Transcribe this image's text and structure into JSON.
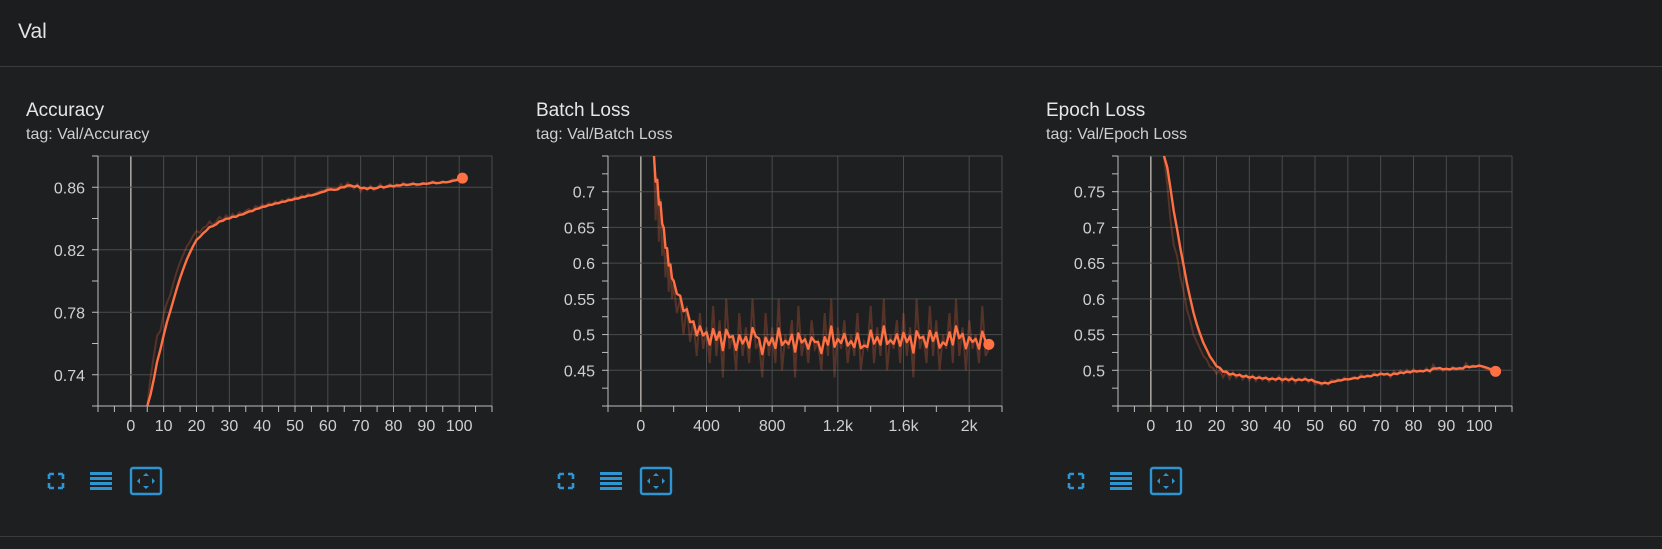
{
  "section": {
    "title": "Val"
  },
  "colors": {
    "series": "#ff7043",
    "grid": "#4a4b4d",
    "axis": "#bdbdbd",
    "zero": "#b0aca4",
    "button": "#2e95d3"
  },
  "cards": [
    {
      "title": "Accuracy",
      "tag": "tag: Val/Accuracy",
      "toolbar": [
        "fullscreen-icon",
        "list-icon",
        "fit-domain-icon"
      ]
    },
    {
      "title": "Batch Loss",
      "tag": "tag: Val/Batch Loss",
      "toolbar": [
        "fullscreen-icon",
        "list-icon",
        "fit-domain-icon"
      ]
    },
    {
      "title": "Epoch Loss",
      "tag": "tag: Val/Epoch Loss",
      "toolbar": [
        "fullscreen-icon",
        "list-icon",
        "fit-domain-icon"
      ]
    }
  ],
  "chart_data": [
    {
      "type": "line",
      "title": "Accuracy",
      "xlim": [
        -10,
        110
      ],
      "ylim": [
        0.72,
        0.88
      ],
      "xticks": [
        0,
        10,
        20,
        30,
        40,
        50,
        60,
        70,
        80,
        90,
        100
      ],
      "xtick_labels": [
        "0",
        "10",
        "20",
        "30",
        "40",
        "50",
        "60",
        "70",
        "80",
        "90",
        "100"
      ],
      "yticks": [
        0.74,
        0.78,
        0.82,
        0.86
      ],
      "ytick_labels": [
        "0.74",
        "0.78",
        "0.82",
        "0.86"
      ],
      "series": [
        {
          "x": [
            5,
            6,
            7,
            8,
            9,
            10,
            11,
            12,
            13,
            14,
            15,
            16,
            17,
            18,
            19,
            20,
            21,
            22,
            23,
            24,
            25,
            26,
            27,
            28,
            29,
            30,
            31,
            32,
            33,
            34,
            35,
            36,
            37,
            38,
            39,
            40,
            41,
            42,
            43,
            44,
            45,
            46,
            47,
            48,
            49,
            50,
            51,
            52,
            53,
            54,
            55,
            56,
            57,
            58,
            59,
            60,
            61,
            62,
            63,
            64,
            65,
            66,
            67,
            68,
            69,
            70,
            71,
            72,
            73,
            74,
            75,
            76,
            77,
            78,
            79,
            80,
            81,
            82,
            83,
            84,
            85,
            86,
            87,
            88,
            89,
            90,
            91,
            92,
            93,
            94,
            95,
            96,
            97,
            98,
            99,
            100,
            101
          ],
          "y": [
            0.72,
            0.738,
            0.752,
            0.765,
            0.768,
            0.779,
            0.786,
            0.791,
            0.799,
            0.806,
            0.812,
            0.817,
            0.822,
            0.825,
            0.829,
            0.832,
            0.831,
            0.834,
            0.835,
            0.838,
            0.836,
            0.838,
            0.841,
            0.839,
            0.842,
            0.84,
            0.843,
            0.841,
            0.844,
            0.843,
            0.845,
            0.846,
            0.845,
            0.848,
            0.847,
            0.849,
            0.848,
            0.85,
            0.849,
            0.851,
            0.85,
            0.852,
            0.851,
            0.853,
            0.852,
            0.854,
            0.853,
            0.855,
            0.854,
            0.856,
            0.855,
            0.856,
            0.857,
            0.858,
            0.858,
            0.86,
            0.859,
            0.858,
            0.859,
            0.862,
            0.86,
            0.863,
            0.861,
            0.859,
            0.862,
            0.857,
            0.86,
            0.858,
            0.861,
            0.858,
            0.86,
            0.862,
            0.859,
            0.861,
            0.862,
            0.86,
            0.862,
            0.861,
            0.863,
            0.861,
            0.862,
            0.863,
            0.861,
            0.862,
            0.863,
            0.862,
            0.863,
            0.864,
            0.862,
            0.863,
            0.864,
            0.863,
            0.864,
            0.865,
            0.865,
            0.866,
            0.867
          ]
        }
      ]
    },
    {
      "type": "line",
      "title": "Batch Loss",
      "xlim": [
        -200,
        2200
      ],
      "ylim": [
        0.4,
        0.75
      ],
      "xticks": [
        0,
        400,
        800,
        1200,
        1600,
        2000
      ],
      "xtick_labels": [
        "0",
        "400",
        "800",
        "1.2k",
        "1.6k",
        "2k"
      ],
      "yticks": [
        0.45,
        0.5,
        0.55,
        0.6,
        0.65,
        0.7
      ],
      "ytick_labels": [
        "0.45",
        "0.5",
        "0.55",
        "0.6",
        "0.65",
        "0.7"
      ],
      "series": [
        {
          "x": [
            80,
            90,
            100,
            110,
            120,
            130,
            140,
            150,
            160,
            170,
            180,
            190,
            200,
            220,
            240,
            260,
            280,
            300,
            320,
            340,
            360,
            380,
            400,
            420,
            440,
            460,
            480,
            500,
            520,
            540,
            560,
            580,
            600,
            620,
            640,
            660,
            680,
            700,
            720,
            740,
            760,
            780,
            800,
            820,
            840,
            860,
            880,
            900,
            920,
            940,
            960,
            980,
            1000,
            1020,
            1040,
            1060,
            1080,
            1100,
            1120,
            1140,
            1160,
            1180,
            1200,
            1220,
            1240,
            1260,
            1280,
            1300,
            1320,
            1340,
            1360,
            1380,
            1400,
            1420,
            1440,
            1460,
            1480,
            1500,
            1520,
            1540,
            1560,
            1580,
            1600,
            1620,
            1640,
            1660,
            1680,
            1700,
            1720,
            1740,
            1760,
            1780,
            1800,
            1820,
            1840,
            1860,
            1880,
            1900,
            1920,
            1940,
            1960,
            1980,
            2000,
            2020,
            2040,
            2060,
            2080,
            2100,
            2120
          ],
          "y": [
            0.75,
            0.66,
            0.72,
            0.63,
            0.69,
            0.61,
            0.64,
            0.58,
            0.62,
            0.56,
            0.6,
            0.55,
            0.57,
            0.53,
            0.55,
            0.5,
            0.54,
            0.49,
            0.52,
            0.47,
            0.53,
            0.48,
            0.51,
            0.46,
            0.54,
            0.47,
            0.52,
            0.44,
            0.55,
            0.48,
            0.5,
            0.45,
            0.53,
            0.47,
            0.51,
            0.46,
            0.55,
            0.48,
            0.49,
            0.44,
            0.53,
            0.47,
            0.51,
            0.46,
            0.55,
            0.45,
            0.5,
            0.48,
            0.52,
            0.44,
            0.54,
            0.47,
            0.5,
            0.46,
            0.52,
            0.48,
            0.49,
            0.45,
            0.53,
            0.47,
            0.55,
            0.44,
            0.51,
            0.48,
            0.52,
            0.46,
            0.5,
            0.47,
            0.53,
            0.45,
            0.49,
            0.48,
            0.54,
            0.46,
            0.51,
            0.47,
            0.55,
            0.45,
            0.5,
            0.48,
            0.52,
            0.46,
            0.53,
            0.47,
            0.51,
            0.44,
            0.55,
            0.48,
            0.5,
            0.46,
            0.54,
            0.47,
            0.52,
            0.45,
            0.5,
            0.48,
            0.53,
            0.46,
            0.55,
            0.47,
            0.51,
            0.45,
            0.52,
            0.48,
            0.5,
            0.46,
            0.54,
            0.47,
            0.48
          ]
        }
      ]
    },
    {
      "type": "line",
      "title": "Epoch Loss",
      "xlim": [
        -10,
        110
      ],
      "ylim": [
        0.45,
        0.8
      ],
      "xticks": [
        0,
        10,
        20,
        30,
        40,
        50,
        60,
        70,
        80,
        90,
        100
      ],
      "xtick_labels": [
        "0",
        "10",
        "20",
        "30",
        "40",
        "50",
        "60",
        "70",
        "80",
        "90",
        "100"
      ],
      "yticks": [
        0.5,
        0.55,
        0.6,
        0.65,
        0.7,
        0.75
      ],
      "ytick_labels": [
        "0.5",
        "0.55",
        "0.6",
        "0.65",
        "0.7",
        "0.75"
      ],
      "series": [
        {
          "x": [
            4,
            5,
            6,
            7,
            8,
            9,
            10,
            11,
            12,
            13,
            14,
            15,
            16,
            17,
            18,
            19,
            20,
            21,
            22,
            23,
            24,
            25,
            26,
            27,
            28,
            29,
            30,
            31,
            32,
            33,
            34,
            35,
            36,
            37,
            38,
            39,
            40,
            41,
            42,
            43,
            44,
            45,
            46,
            47,
            48,
            49,
            50,
            51,
            52,
            53,
            54,
            55,
            56,
            57,
            58,
            59,
            60,
            61,
            62,
            63,
            64,
            65,
            66,
            67,
            68,
            69,
            70,
            71,
            72,
            73,
            74,
            75,
            76,
            77,
            78,
            79,
            80,
            81,
            82,
            83,
            84,
            85,
            86,
            87,
            88,
            89,
            90,
            91,
            92,
            93,
            94,
            95,
            96,
            97,
            98,
            99,
            100,
            101,
            102,
            103,
            104,
            105
          ],
          "y": [
            0.8,
            0.76,
            0.71,
            0.675,
            0.66,
            0.63,
            0.61,
            0.585,
            0.57,
            0.55,
            0.54,
            0.53,
            0.52,
            0.515,
            0.505,
            0.503,
            0.495,
            0.5,
            0.49,
            0.498,
            0.488,
            0.497,
            0.489,
            0.495,
            0.487,
            0.494,
            0.486,
            0.493,
            0.485,
            0.492,
            0.486,
            0.491,
            0.484,
            0.49,
            0.485,
            0.492,
            0.483,
            0.49,
            0.484,
            0.491,
            0.482,
            0.489,
            0.485,
            0.49,
            0.483,
            0.488,
            0.48,
            0.482,
            0.479,
            0.484,
            0.48,
            0.487,
            0.485,
            0.488,
            0.486,
            0.49,
            0.487,
            0.489,
            0.491,
            0.488,
            0.495,
            0.49,
            0.494,
            0.491,
            0.497,
            0.492,
            0.498,
            0.493,
            0.496,
            0.49,
            0.499,
            0.494,
            0.5,
            0.495,
            0.501,
            0.496,
            0.502,
            0.497,
            0.5,
            0.498,
            0.503,
            0.497,
            0.508,
            0.502,
            0.504,
            0.499,
            0.503,
            0.5,
            0.505,
            0.501,
            0.504,
            0.502,
            0.51,
            0.503,
            0.507,
            0.505,
            0.508,
            0.504,
            0.502,
            0.5,
            0.497,
            0.496
          ]
        }
      ]
    }
  ]
}
